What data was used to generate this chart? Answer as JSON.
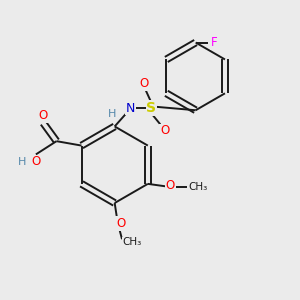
{
  "background_color": "#ebebeb",
  "bond_color": "#1a1a1a",
  "atom_colors": {
    "O": "#ff0000",
    "N": "#0000cd",
    "S": "#cccc00",
    "F": "#ff00ff",
    "H": "#5588aa",
    "C": "#1a1a1a"
  },
  "figsize": [
    3.0,
    3.0
  ],
  "dpi": 100
}
